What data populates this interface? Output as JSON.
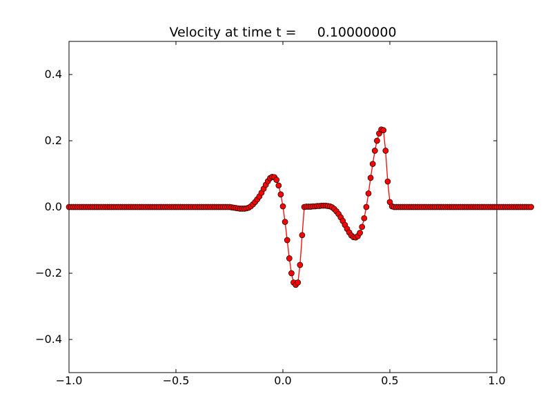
{
  "chart_data": {
    "type": "line",
    "title": "Velocity at time t =     0.10000000",
    "xlabel": "",
    "ylabel": "",
    "xlim": [
      -1.0,
      1.0
    ],
    "ylim": [
      -0.5,
      0.5
    ],
    "grid": false,
    "legend": "none",
    "x_ticks": [
      -1.0,
      -0.5,
      0.0,
      0.5,
      1.0
    ],
    "x_tick_labels": [
      "−1.0",
      "−0.5",
      "0.0",
      "0.5",
      "1.0"
    ],
    "y_ticks": [
      -0.4,
      -0.2,
      0.0,
      0.2,
      0.4
    ],
    "y_tick_labels": [
      "−0.4",
      "−0.2",
      "0.0",
      "0.2",
      "0.4"
    ],
    "series": [
      {
        "line_color": "#ff0000",
        "marker": "circle",
        "marker_face": "#ff0000",
        "marker_edge": "#000000",
        "x_start": -1.0,
        "x_step": 0.01,
        "y": [
          0,
          0,
          0,
          0,
          0,
          0,
          0,
          0,
          0,
          0,
          0,
          0,
          0,
          0,
          0,
          0,
          0,
          0,
          0,
          0,
          0,
          0,
          0,
          0,
          0,
          0,
          0,
          0,
          0,
          0,
          0,
          0,
          0,
          0,
          0,
          0,
          0,
          0,
          0,
          0,
          0,
          0,
          0,
          0,
          0,
          0,
          0,
          0,
          0,
          0,
          0,
          0,
          0,
          0,
          0,
          0,
          0,
          0,
          0,
          0,
          0,
          0,
          0,
          0,
          0,
          0,
          0,
          0,
          0,
          0,
          0,
          0,
          0,
          0,
          0,
          0,
          -0.001,
          -0.002,
          -0.003,
          -0.004,
          -0.005,
          -0.005,
          -0.005,
          -0.004,
          -0.002,
          0.002,
          0.008,
          0.015,
          0.023,
          0.032,
          0.043,
          0.055,
          0.067,
          0.078,
          0.087,
          0.091,
          0.09,
          0.082,
          0.065,
          0.038,
          0.002,
          -0.045,
          -0.1,
          -0.155,
          -0.2,
          -0.228,
          -0.235,
          -0.228,
          -0.175,
          -0.085,
          0,
          0.001,
          0.001,
          0.001,
          0.002,
          0.002,
          0.003,
          0.003,
          0.004,
          0.004,
          0.004,
          0.003,
          0.002,
          -0.001,
          -0.006,
          -0.013,
          -0.021,
          -0.031,
          -0.042,
          -0.054,
          -0.066,
          -0.077,
          -0.086,
          -0.091,
          -0.092,
          -0.088,
          -0.078,
          -0.06,
          -0.034,
          0,
          0.041,
          0.088,
          0.13,
          0.17,
          0.2,
          0.222,
          0.234,
          0.232,
          0.17,
          0.077,
          0.015,
          0.002,
          0,
          0,
          0,
          0,
          0,
          0,
          0,
          0,
          0,
          0,
          0,
          0,
          0,
          0,
          0,
          0,
          0,
          0,
          0,
          0,
          0,
          0,
          0,
          0,
          0,
          0,
          0,
          0,
          0,
          0,
          0,
          0,
          0,
          0,
          0,
          0,
          0,
          0,
          0,
          0,
          0,
          0,
          0,
          0,
          0,
          0,
          0,
          0,
          0,
          0,
          0,
          0,
          0,
          0,
          0,
          0,
          0,
          0,
          0,
          0,
          0,
          0,
          0,
          0,
          0
        ]
      }
    ]
  }
}
